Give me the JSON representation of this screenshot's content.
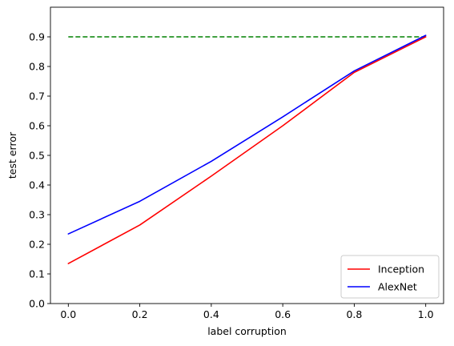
{
  "chart_data": {
    "type": "line",
    "xlabel": "label corruption",
    "ylabel": "test error",
    "xlim": [
      -0.05,
      1.05
    ],
    "ylim": [
      0.0,
      1.0
    ],
    "xticks": [
      "0.0",
      "0.2",
      "0.4",
      "0.6",
      "0.8",
      "1.0"
    ],
    "yticks": [
      "0.0",
      "0.1",
      "0.2",
      "0.3",
      "0.4",
      "0.5",
      "0.6",
      "0.7",
      "0.8",
      "0.9"
    ],
    "grid": false,
    "legend_position": "lower-right",
    "x": [
      0.0,
      0.2,
      0.4,
      0.6,
      0.8,
      1.0
    ],
    "series": [
      {
        "name": "Inception",
        "color": "#ff0000",
        "values": [
          0.135,
          0.265,
          0.43,
          0.6,
          0.78,
          0.9
        ]
      },
      {
        "name": "AlexNet",
        "color": "#0000ff",
        "values": [
          0.235,
          0.345,
          0.48,
          0.63,
          0.785,
          0.905
        ]
      }
    ],
    "reference_line": {
      "y": 0.9,
      "x_range": [
        0.0,
        1.0
      ],
      "color": "#008000",
      "style": "dashed"
    }
  }
}
